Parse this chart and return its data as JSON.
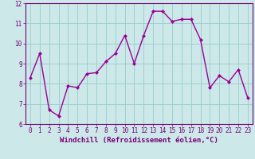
{
  "x": [
    0,
    1,
    2,
    3,
    4,
    5,
    6,
    7,
    8,
    9,
    10,
    11,
    12,
    13,
    14,
    15,
    16,
    17,
    18,
    19,
    20,
    21,
    22,
    23
  ],
  "y": [
    8.3,
    9.5,
    6.7,
    6.4,
    7.9,
    7.8,
    8.5,
    8.55,
    9.1,
    9.5,
    10.4,
    9.0,
    10.4,
    11.6,
    11.6,
    11.1,
    11.2,
    11.2,
    10.2,
    7.8,
    8.4,
    8.1,
    8.7,
    7.3
  ],
  "line_color": "#990099",
  "marker": "D",
  "markersize": 2.0,
  "linewidth": 1.0,
  "bg_color": "#cce8e8",
  "grid_color": "#99cccc",
  "xlabel": "Windchill (Refroidissement éolien,°C)",
  "xlim": [
    -0.5,
    23.5
  ],
  "ylim": [
    6,
    12
  ],
  "yticks": [
    6,
    7,
    8,
    9,
    10,
    11,
    12
  ],
  "xticks": [
    0,
    1,
    2,
    3,
    4,
    5,
    6,
    7,
    8,
    9,
    10,
    11,
    12,
    13,
    14,
    15,
    16,
    17,
    18,
    19,
    20,
    21,
    22,
    23
  ],
  "tick_fontsize": 5.5,
  "xlabel_fontsize": 6.5,
  "tick_color": "#770077",
  "spine_color": "#770077"
}
